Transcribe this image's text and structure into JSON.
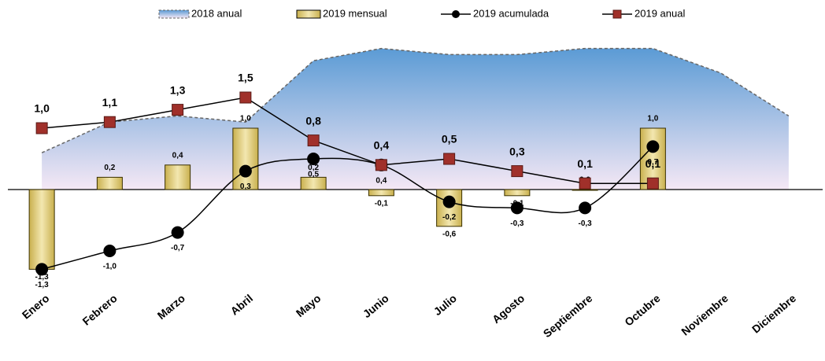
{
  "chart_data": {
    "type": "combo",
    "categories": [
      "Enero",
      "Febrero",
      "Marzo",
      "Abril",
      "Mayo",
      "Junio",
      "Julio",
      "Agosto",
      "Septiembre",
      "Octubre",
      "Noviembre",
      "Diciembre"
    ],
    "ylim": [
      -1.5,
      2.5
    ],
    "series": [
      {
        "name": "2018 anual",
        "type": "area",
        "color": "#5b9bd5",
        "values": [
          0.6,
          1.1,
          1.2,
          1.1,
          2.1,
          2.3,
          2.2,
          2.2,
          2.3,
          2.3,
          1.9,
          1.2
        ]
      },
      {
        "name": "2019 mensual",
        "type": "bar",
        "color": "#d9c77a",
        "values": [
          -1.3,
          0.2,
          0.4,
          1.0,
          0.2,
          -0.1,
          -0.6,
          -0.1,
          0.0,
          1.0,
          null,
          null
        ],
        "value_labels": [
          "-1,3",
          "0,2",
          "0,4",
          "1,0",
          "0,2",
          "-0,1",
          "-0,6",
          "-0,1",
          "0,0",
          "1,0",
          null,
          null
        ]
      },
      {
        "name": "2019 acumulada",
        "type": "line",
        "color": "#000000",
        "values": [
          -1.3,
          -1.0,
          -0.7,
          0.3,
          0.5,
          0.4,
          -0.2,
          -0.3,
          -0.3,
          0.7,
          null,
          null
        ],
        "value_labels": [
          "-1,3",
          "-1,0",
          "-0,7",
          "0,3",
          "0,5",
          "0,4",
          "-0,2",
          "-0,3",
          "-0,3",
          "0,7",
          null,
          null
        ]
      },
      {
        "name": "2019 anual",
        "type": "line",
        "color": "#a0302a",
        "values": [
          1.0,
          1.1,
          1.3,
          1.5,
          0.8,
          0.4,
          0.5,
          0.3,
          0.1,
          0.1,
          null,
          null
        ],
        "value_labels": [
          "1,0",
          "1,1",
          "1,3",
          "1,5",
          "0,8",
          "0,4",
          "0,5",
          "0,3",
          "0,1",
          "0,1",
          null,
          null
        ]
      }
    ]
  }
}
